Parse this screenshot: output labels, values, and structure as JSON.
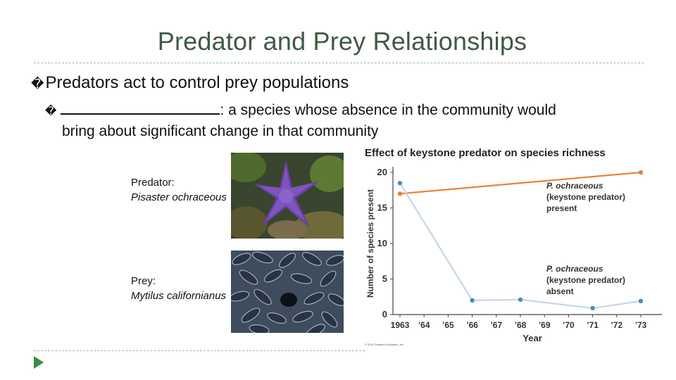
{
  "slide": {
    "title": "Predator and Prey Relationships",
    "bullet_marker": "�",
    "bullet1": "Predators act to control prey populations",
    "bullet2_rest": ": a species whose absence in the community would",
    "bullet2_line2": "bring about significant change in that community"
  },
  "predator": {
    "term": "Predator",
    "colon": ":",
    "species": "Pisaster ochraceous"
  },
  "prey": {
    "term": "Prey",
    "colon": ":",
    "species": "Mytilus californianus"
  },
  "chart_data": {
    "type": "line",
    "title": "Effect of keystone predator on species richness",
    "xlabel": "Year",
    "ylabel": "Number of species present",
    "x": [
      1963,
      1964,
      1965,
      1966,
      1967,
      1968,
      1969,
      1970,
      1971,
      1972,
      1973
    ],
    "x_tick_labels": [
      "1963",
      "’64",
      "’65",
      "’66",
      "’67",
      "’68",
      "’69",
      "’70",
      "’71",
      "’72",
      "’73"
    ],
    "y_ticks": [
      0,
      5,
      10,
      15,
      20
    ],
    "ylim": [
      0,
      20
    ],
    "grid": false,
    "series": [
      {
        "annotation_line1": "P. ochraceous",
        "annotation_line2": "(keystone predator)",
        "annotation_line3": "present",
        "color": "#e8833a",
        "x": [
          1963,
          1973
        ],
        "values": [
          17,
          20
        ]
      },
      {
        "annotation_line1": "P. ochraceous",
        "annotation_line2": "(keystone predator)",
        "annotation_line3": "absent",
        "color": "#c5d6e8",
        "marker_color": "#4a8cc4",
        "x": [
          1963,
          1966,
          1968,
          1971,
          1973
        ],
        "values": [
          18.5,
          2,
          2.1,
          0.9,
          1.9
        ]
      }
    ],
    "copyright": "© 2011 Pearson Education, Inc."
  }
}
